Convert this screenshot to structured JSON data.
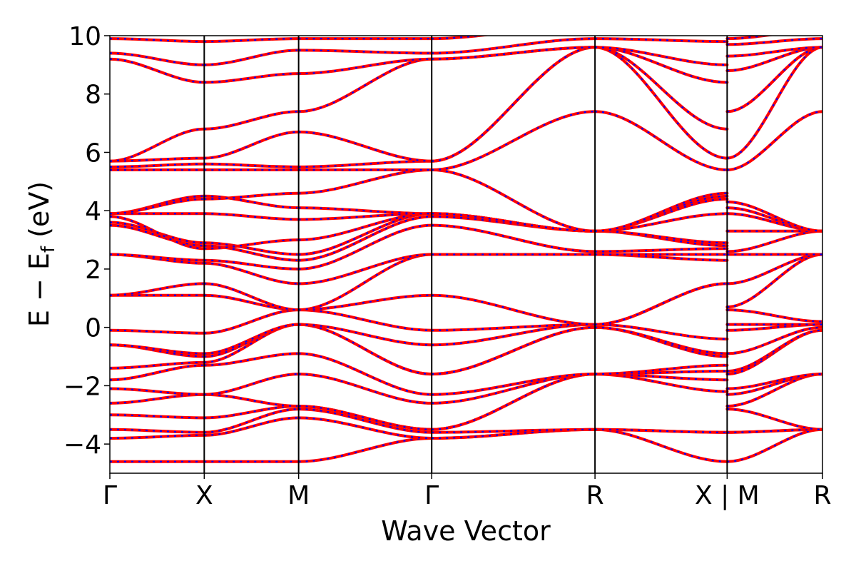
{
  "chart_data": {
    "type": "line",
    "xlabel": "Wave Vector",
    "ylabel_main": "E − E",
    "ylabel_sub": "f",
    "ylabel_unit": " (eV)",
    "ylim": [
      -5,
      10
    ],
    "yticks": [
      -4,
      -2,
      0,
      2,
      4,
      6,
      8,
      10
    ],
    "ytick_labels": [
      "−4",
      "−2",
      "0",
      "2",
      "4",
      "6",
      "8",
      "10"
    ],
    "xlim": [
      0,
      7.55
    ],
    "kpoints": [
      {
        "label": "Γ",
        "x": 0
      },
      {
        "label": "X",
        "x": 1.0
      },
      {
        "label": "M",
        "x": 2.0
      },
      {
        "label": "Γ",
        "x": 3.41
      },
      {
        "label": "R",
        "x": 5.14
      },
      {
        "label": "X | M",
        "x": 6.54
      },
      {
        "label": "R",
        "x": 7.55
      }
    ],
    "overlay_colors": {
      "line1": "#ff0000",
      "line2": "#0000ff"
    },
    "grid": false,
    "segments": [
      {
        "x": [
          0,
          1.0
        ],
        "bands": [
          [
            -4.6,
            -4.6
          ],
          [
            -3.8,
            -3.7
          ],
          [
            -3.5,
            -3.6
          ],
          [
            -3.0,
            -3.1
          ],
          [
            -2.6,
            -2.3
          ],
          [
            -2.1,
            -2.3
          ],
          [
            -1.8,
            -1.3
          ],
          [
            -1.4,
            -1.2
          ],
          [
            -0.6,
            -1.0
          ],
          [
            -0.6,
            -0.9
          ],
          [
            -0.1,
            -0.2
          ],
          [
            1.1,
            1.1
          ],
          [
            1.1,
            1.5
          ],
          [
            2.5,
            2.2
          ],
          [
            2.5,
            2.3
          ],
          [
            3.5,
            2.8
          ],
          [
            3.6,
            2.9
          ],
          [
            3.8,
            2.7
          ],
          [
            3.9,
            3.9
          ],
          [
            3.9,
            4.5
          ],
          [
            3.9,
            4.4
          ],
          [
            5.4,
            5.4
          ],
          [
            5.5,
            5.6
          ],
          [
            5.7,
            5.8
          ],
          [
            5.7,
            6.8
          ],
          [
            9.2,
            8.4
          ],
          [
            9.4,
            9.0
          ],
          [
            9.9,
            9.8
          ]
        ]
      },
      {
        "x": [
          1.0,
          2.0
        ],
        "bands": [
          [
            -4.6,
            -4.6
          ],
          [
            -3.7,
            -3.1
          ],
          [
            -3.6,
            -2.8
          ],
          [
            -3.1,
            -2.7
          ],
          [
            -2.3,
            -2.7
          ],
          [
            -2.3,
            -1.6
          ],
          [
            -1.3,
            -0.9
          ],
          [
            -1.2,
            0.1
          ],
          [
            -1.0,
            0.1
          ],
          [
            -0.9,
            0.1
          ],
          [
            -0.2,
            0.6
          ],
          [
            1.1,
            0.6
          ],
          [
            1.5,
            0.6
          ],
          [
            2.2,
            1.5
          ],
          [
            2.3,
            2.0
          ],
          [
            2.8,
            2.3
          ],
          [
            2.9,
            2.5
          ],
          [
            2.7,
            3.0
          ],
          [
            3.9,
            3.7
          ],
          [
            4.5,
            4.1
          ],
          [
            4.4,
            4.6
          ],
          [
            5.4,
            5.4
          ],
          [
            5.6,
            5.5
          ],
          [
            5.8,
            6.7
          ],
          [
            6.8,
            7.4
          ],
          [
            8.4,
            8.7
          ],
          [
            9.0,
            9.5
          ],
          [
            9.8,
            9.9
          ]
        ]
      },
      {
        "x": [
          2.0,
          3.41
        ],
        "bands": [
          [
            -4.6,
            -3.8
          ],
          [
            -3.1,
            -3.8
          ],
          [
            -2.8,
            -3.6
          ],
          [
            -2.7,
            -3.5
          ],
          [
            -2.7,
            -3.5
          ],
          [
            -1.6,
            -2.6
          ],
          [
            -0.9,
            -2.3
          ],
          [
            0.1,
            -1.6
          ],
          [
            0.1,
            -1.6
          ],
          [
            0.1,
            -0.6
          ],
          [
            0.6,
            -0.1
          ],
          [
            0.6,
            1.1
          ],
          [
            0.6,
            2.5
          ],
          [
            1.5,
            2.5
          ],
          [
            2.0,
            3.5
          ],
          [
            2.3,
            3.8
          ],
          [
            2.5,
            3.9
          ],
          [
            3.0,
            3.9
          ],
          [
            3.7,
            3.9
          ],
          [
            4.1,
            3.9
          ],
          [
            4.6,
            5.4
          ],
          [
            5.4,
            5.4
          ],
          [
            5.5,
            5.7
          ],
          [
            6.7,
            5.7
          ],
          [
            7.4,
            9.2
          ],
          [
            8.7,
            9.2
          ],
          [
            9.5,
            9.4
          ],
          [
            9.9,
            9.9
          ]
        ]
      },
      {
        "x": [
          3.41,
          5.14
        ],
        "bands": [
          [
            -3.8,
            -3.5
          ],
          [
            -3.8,
            -3.5
          ],
          [
            -3.6,
            -3.5
          ],
          [
            -3.5,
            -1.6
          ],
          [
            -3.5,
            -1.6
          ],
          [
            -2.6,
            -1.6
          ],
          [
            -2.3,
            -1.6
          ],
          [
            -1.6,
            0.0
          ],
          [
            -1.6,
            0.0
          ],
          [
            -0.6,
            0.1
          ],
          [
            -0.1,
            0.1
          ],
          [
            1.1,
            0.1
          ],
          [
            2.5,
            2.5
          ],
          [
            2.5,
            2.5
          ],
          [
            3.5,
            2.6
          ],
          [
            3.8,
            3.3
          ],
          [
            3.9,
            3.3
          ],
          [
            3.9,
            3.3
          ],
          [
            3.9,
            3.3
          ],
          [
            3.9,
            3.3
          ],
          [
            5.4,
            3.3
          ],
          [
            5.4,
            7.4
          ],
          [
            5.7,
            9.6
          ],
          [
            5.7,
            9.6
          ],
          [
            9.2,
            9.6
          ],
          [
            9.2,
            9.6
          ],
          [
            9.4,
            9.9
          ],
          [
            9.9,
            10.4
          ]
        ]
      },
      {
        "x": [
          5.14,
          6.54
        ],
        "bands": [
          [
            -3.5,
            -4.6
          ],
          [
            -3.5,
            -3.6
          ],
          [
            -3.5,
            -3.6
          ],
          [
            -1.6,
            -2.2
          ],
          [
            -1.6,
            -1.8
          ],
          [
            -1.6,
            -1.5
          ],
          [
            -1.6,
            -1.3
          ],
          [
            0.0,
            -1.0
          ],
          [
            0.0,
            -0.9
          ],
          [
            0.1,
            -0.4
          ],
          [
            0.1,
            1.5
          ],
          [
            0.1,
            1.5
          ],
          [
            2.5,
            2.3
          ],
          [
            2.5,
            2.5
          ],
          [
            2.6,
            2.7
          ],
          [
            3.3,
            2.8
          ],
          [
            3.3,
            2.9
          ],
          [
            3.3,
            3.9
          ],
          [
            3.3,
            4.4
          ],
          [
            3.3,
            4.5
          ],
          [
            3.3,
            4.6
          ],
          [
            7.4,
            5.4
          ],
          [
            9.6,
            5.8
          ],
          [
            9.6,
            6.8
          ],
          [
            9.6,
            8.4
          ],
          [
            9.6,
            9.0
          ],
          [
            9.9,
            9.8
          ],
          [
            10.4,
            10.2
          ]
        ]
      },
      {
        "x": [
          6.54,
          7.55
        ],
        "bands": [
          [
            -4.6,
            -3.5
          ],
          [
            -3.6,
            -3.5
          ],
          [
            -3.6,
            -3.5
          ],
          [
            -2.8,
            -3.5
          ],
          [
            -2.7,
            -1.6
          ],
          [
            -2.3,
            -1.6
          ],
          [
            -2.1,
            -1.6
          ],
          [
            -1.6,
            -0.1
          ],
          [
            -1.5,
            -0.1
          ],
          [
            -0.9,
            0.0
          ],
          [
            -0.1,
            0.1
          ],
          [
            0.1,
            0.1
          ],
          [
            0.6,
            0.2
          ],
          [
            0.7,
            2.5
          ],
          [
            1.5,
            2.5
          ],
          [
            2.5,
            2.5
          ],
          [
            2.6,
            3.3
          ],
          [
            3.3,
            3.3
          ],
          [
            3.9,
            3.3
          ],
          [
            4.1,
            3.3
          ],
          [
            4.3,
            3.3
          ],
          [
            5.4,
            7.4
          ],
          [
            5.8,
            9.6
          ],
          [
            7.4,
            9.6
          ],
          [
            8.8,
            9.6
          ],
          [
            9.3,
            9.6
          ],
          [
            9.7,
            9.9
          ],
          [
            9.9,
            10.2
          ]
        ]
      }
    ]
  }
}
